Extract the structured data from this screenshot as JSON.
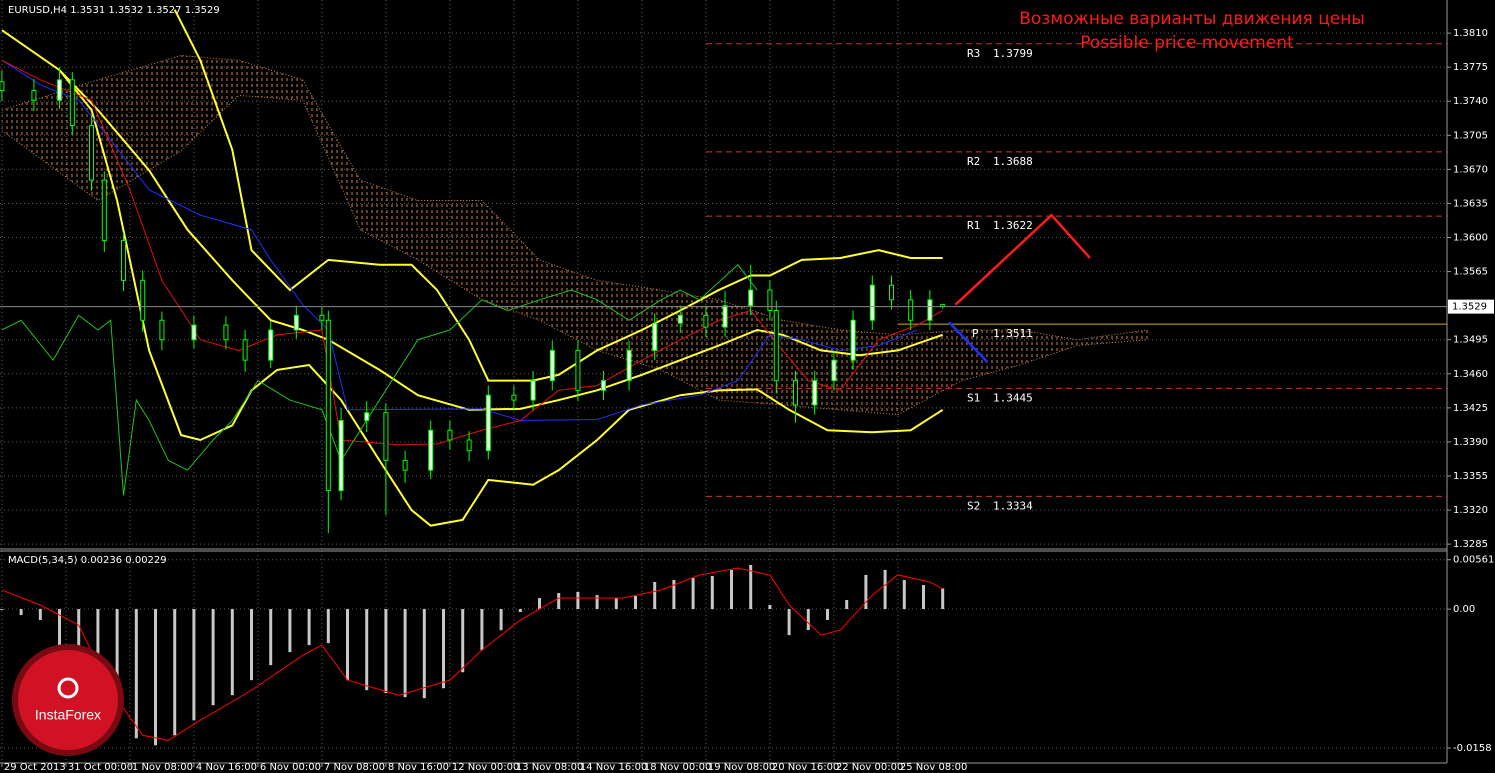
{
  "chart_data": [
    {
      "type": "candlestick",
      "header": "EURUSD,H4  1.3531 1.3532 1.3527 1.3529",
      "title": "Возможные варианты движения цены",
      "subtitle": "Possible price movement",
      "title_color": "#ff1a1a",
      "logo": "InstaForex",
      "xlim": [
        -0.3,
        225.8
      ],
      "xticks": [
        {
          "value": 0,
          "label": "29 Oct 2013"
        },
        {
          "value": 10,
          "label": "31 Oct 00:00"
        },
        {
          "value": 20,
          "label": "1 Nov 08:00"
        },
        {
          "value": 30,
          "label": "4 Nov 16:00"
        },
        {
          "value": 40,
          "label": "6 Nov 00:00"
        },
        {
          "value": 50,
          "label": "7 Nov 08:00"
        },
        {
          "value": 60,
          "label": "8 Nov 16:00"
        },
        {
          "value": 70,
          "label": "12 Nov 00:00"
        },
        {
          "value": 80,
          "label": "13 Nov 08:00"
        },
        {
          "value": 90,
          "label": "14 Nov 16:00"
        },
        {
          "value": 100,
          "label": "18 Nov 00:00"
        },
        {
          "value": 110,
          "label": "19 Nov 08:00"
        },
        {
          "value": 120,
          "label": "20 Nov 16:00"
        },
        {
          "value": 130,
          "label": "22 Nov 00:00"
        },
        {
          "value": 140,
          "label": "25 Nov 08:00"
        }
      ],
      "ylim": [
        1.328,
        1.3844
      ],
      "yticks": [
        {
          "value": 1.381,
          "label": "1.3810"
        },
        1.3775,
        {
          "value": 1.374,
          "label": "1.3740"
        },
        1.3705,
        {
          "value": 1.367,
          "label": "1.3670"
        },
        1.3635,
        {
          "value": 1.36,
          "label": "1.3600"
        },
        1.3565,
        1.3495,
        {
          "value": 1.346,
          "label": "1.3460"
        },
        1.3425,
        {
          "value": 1.339,
          "label": "1.3390"
        },
        1.3355,
        {
          "value": 1.332,
          "label": "1.3320"
        },
        1.3285
      ],
      "grid": true,
      "candle_color": "#00ff00",
      "bull_body": "#f0fff0",
      "bear_body": "#000000",
      "x": [
        0,
        5,
        9,
        11,
        14,
        16,
        19,
        22,
        25,
        30,
        35,
        38,
        42,
        46,
        50,
        51,
        53,
        57,
        60,
        63,
        67,
        70,
        73,
        76,
        80,
        83,
        86,
        90,
        94,
        98,
        102,
        106,
        110,
        113,
        117,
        120,
        121,
        124,
        127,
        130,
        133,
        136,
        139,
        142,
        145,
        147
      ],
      "open": [
        1.376,
        1.3751,
        1.3741,
        1.3762,
        1.3715,
        1.3659,
        1.3597,
        1.3556,
        1.3515,
        1.3495,
        1.351,
        1.3495,
        1.3474,
        1.3505,
        1.352,
        1.3515,
        1.334,
        1.3412,
        1.342,
        1.3371,
        1.3361,
        1.3402,
        1.3392,
        1.3381,
        1.3438,
        1.3433,
        1.3453,
        1.3484,
        1.3443,
        1.3453,
        1.3484,
        1.3512,
        1.352,
        1.3508,
        1.353,
        1.3546,
        1.3525,
        1.3453,
        1.3428,
        1.3453,
        1.3474,
        1.3515,
        1.3551,
        1.3536,
        1.3515,
        1.3531
      ],
      "high": [
        1.3772,
        1.3763,
        1.3775,
        1.377,
        1.3725,
        1.3668,
        1.3605,
        1.3566,
        1.3524,
        1.352,
        1.3519,
        1.3505,
        1.3514,
        1.353,
        1.3529,
        1.3525,
        1.3425,
        1.3432,
        1.343,
        1.3381,
        1.3412,
        1.3412,
        1.3401,
        1.3448,
        1.3448,
        1.3463,
        1.3494,
        1.3494,
        1.3463,
        1.3494,
        1.3522,
        1.353,
        1.353,
        1.3545,
        1.3572,
        1.3556,
        1.3535,
        1.3463,
        1.3463,
        1.3484,
        1.3525,
        1.3561,
        1.3561,
        1.3546,
        1.3546,
        1.3532
      ],
      "low": [
        1.374,
        1.373,
        1.3732,
        1.3705,
        1.3648,
        1.3585,
        1.3545,
        1.3503,
        1.3484,
        1.3486,
        1.3485,
        1.3462,
        1.3466,
        1.3496,
        1.3505,
        1.3296,
        1.333,
        1.34,
        1.3315,
        1.3348,
        1.3352,
        1.3382,
        1.337,
        1.3372,
        1.3422,
        1.3423,
        1.3443,
        1.3432,
        1.3433,
        1.3443,
        1.3474,
        1.3502,
        1.3498,
        1.3498,
        1.352,
        1.3515,
        1.344,
        1.341,
        1.3418,
        1.3443,
        1.3464,
        1.3505,
        1.3526,
        1.3505,
        1.3505,
        1.3527
      ],
      "close": [
        1.3751,
        1.3741,
        1.3762,
        1.3715,
        1.3659,
        1.3597,
        1.3556,
        1.3515,
        1.3495,
        1.351,
        1.3495,
        1.3474,
        1.3505,
        1.352,
        1.3515,
        1.334,
        1.3412,
        1.342,
        1.3371,
        1.3361,
        1.3402,
        1.3392,
        1.3381,
        1.3438,
        1.3433,
        1.3453,
        1.3484,
        1.3443,
        1.3453,
        1.3484,
        1.3512,
        1.352,
        1.3508,
        1.353,
        1.3546,
        1.3525,
        1.3453,
        1.3428,
        1.3453,
        1.3474,
        1.3515,
        1.3551,
        1.3536,
        1.3515,
        1.3536,
        1.3529
      ],
      "cloud": {
        "color": "#c8824a",
        "x": [
          0,
          15,
          28,
          37,
          47,
          56,
          65,
          75,
          84,
          93,
          103,
          112,
          122,
          131,
          140,
          150,
          159,
          168,
          179
        ],
        "span_a": [
          1.3731,
          1.3762,
          1.3787,
          1.3782,
          1.3762,
          1.3659,
          1.3638,
          1.3638,
          1.3577,
          1.3556,
          1.3546,
          1.3536,
          1.3515,
          1.3505,
          1.35,
          1.3505,
          1.3505,
          1.3495,
          1.3505
        ],
        "span_b": [
          1.371,
          1.3638,
          1.3689,
          1.3746,
          1.3741,
          1.3608,
          1.3577,
          1.3536,
          1.3515,
          1.3484,
          1.3464,
          1.3433,
          1.3428,
          1.3423,
          1.3418,
          1.3453,
          1.3469,
          1.3489,
          1.3495
        ]
      },
      "series": [
        {
          "color": "#ffff33",
          "x": [
            27,
            31,
            36,
            39,
            45,
            51,
            59,
            64,
            68,
            73,
            76,
            83,
            87,
            93,
            100,
            106,
            112,
            117,
            120,
            125,
            131,
            137,
            142,
            147
          ],
          "values": [
            1.3834,
            1.3782,
            1.369,
            1.3587,
            1.3546,
            1.3577,
            1.3572,
            1.3572,
            1.3546,
            1.3495,
            1.3453,
            1.3453,
            1.3459,
            1.3484,
            1.3505,
            1.3525,
            1.3546,
            1.3561,
            1.3561,
            1.3577,
            1.3579,
            1.3587,
            1.3579,
            1.3579
          ]
        },
        {
          "color": "#ffff33",
          "x": [
            0,
            9,
            15,
            23,
            29,
            36,
            42,
            47,
            51,
            59,
            65,
            73,
            81,
            87,
            93,
            100,
            106,
            112,
            118,
            122,
            128,
            134,
            140,
            147
          ],
          "values": [
            1.3813,
            1.3772,
            1.3731,
            1.3669,
            1.3608,
            1.3556,
            1.3515,
            1.3505,
            1.3495,
            1.3464,
            1.3438,
            1.3423,
            1.3424,
            1.3433,
            1.3443,
            1.3459,
            1.3474,
            1.3489,
            1.3505,
            1.35,
            1.3484,
            1.3479,
            1.3484,
            1.35
          ]
        },
        {
          "color": "#ffff33",
          "x": [
            9,
            14,
            18,
            23,
            28,
            31,
            36,
            39,
            43,
            48,
            53,
            59,
            64,
            67,
            72,
            76,
            83,
            87,
            93,
            98,
            106,
            112,
            118,
            123,
            129,
            136,
            142,
            147
          ],
          "values": [
            1.3772,
            1.3731,
            1.3638,
            1.3484,
            1.3397,
            1.3392,
            1.3407,
            1.3443,
            1.3464,
            1.3469,
            1.3433,
            1.3371,
            1.332,
            1.3304,
            1.331,
            1.3351,
            1.3346,
            1.3361,
            1.3392,
            1.3423,
            1.3438,
            1.3443,
            1.3444,
            1.3423,
            1.3402,
            1.34,
            1.3402,
            1.3423
          ]
        },
        {
          "color": "#1f2fff",
          "x": [
            0,
            6,
            12,
            17,
            23,
            31,
            39,
            42,
            47,
            51,
            54,
            75,
            81,
            93,
            100,
            109,
            115,
            120,
            125,
            131,
            137,
            143
          ],
          "values": [
            1.3782,
            1.3757,
            1.3741,
            1.37,
            1.3649,
            1.3623,
            1.3608,
            1.3577,
            1.3531,
            1.3505,
            1.3423,
            1.3424,
            1.3412,
            1.3413,
            1.3428,
            1.3438,
            1.3453,
            1.35,
            1.3495,
            1.3484,
            1.3489,
            1.3505
          ]
        },
        {
          "color": "#e01010",
          "x": [
            0,
            6,
            14,
            20,
            25,
            31,
            37,
            43,
            50,
            53,
            62,
            68,
            75,
            81,
            87,
            93,
            100,
            106,
            112,
            117,
            122,
            126,
            131,
            137,
            143,
            147
          ],
          "values": [
            1.3782,
            1.3762,
            1.3741,
            1.3649,
            1.3556,
            1.3495,
            1.3484,
            1.35,
            1.3505,
            1.3392,
            1.3387,
            1.3388,
            1.3402,
            1.3412,
            1.3443,
            1.3448,
            1.3474,
            1.3495,
            1.3515,
            1.3525,
            1.3484,
            1.3453,
            1.3443,
            1.3495,
            1.351,
            1.3525
          ]
        },
        {
          "color": "#22c322",
          "x": [
            0,
            3,
            8,
            12,
            15,
            17,
            19,
            21,
            23,
            26,
            29,
            33,
            36,
            40,
            45,
            50,
            53,
            59,
            65,
            70,
            75,
            79,
            84,
            89,
            93,
            98,
            103,
            106,
            109,
            115,
            118
          ],
          "values": [
            1.3505,
            1.3515,
            1.3474,
            1.352,
            1.3505,
            1.3515,
            1.3335,
            1.3433,
            1.3412,
            1.3371,
            1.3361,
            1.3392,
            1.3412,
            1.3453,
            1.3433,
            1.3423,
            1.3371,
            1.3433,
            1.3495,
            1.3505,
            1.3536,
            1.3525,
            1.3536,
            1.3546,
            1.3536,
            1.3515,
            1.3536,
            1.3546,
            1.3536,
            1.3572,
            1.3546
          ]
        }
      ],
      "forecast": [
        {
          "color": "#ff1a1a",
          "x": [
            149,
            164,
            170
          ],
          "values": [
            1.3531,
            1.3623,
            1.3579
          ]
        },
        {
          "color": "#1f2fff",
          "x": [
            148,
            154
          ],
          "values": [
            1.3513,
            1.3472
          ]
        }
      ],
      "levels": [
        {
          "label": "R3",
          "value": 1.3799
        },
        {
          "label": "R2",
          "value": 1.3688
        },
        {
          "label": "R1",
          "value": 1.3622
        },
        {
          "label": "P",
          "value": 1.3511
        },
        {
          "label": "S1",
          "value": 1.3445
        },
        {
          "label": "S2",
          "value": 1.3334
        }
      ],
      "level_color": "#c0392b",
      "pivot_color": "#d4b000",
      "current_price": 1.3529
    },
    {
      "type": "bar",
      "header": "MACD(5,34,5) 0.00236 0.00229",
      "color": "#c8c8c8",
      "ylim": [
        -0.0175,
        0.0066
      ],
      "yticks": [
        0.00561,
        {
          "value": 0,
          "label": "0.00"
        },
        -0.0158
      ],
      "x": [
        0,
        3,
        6,
        9,
        12,
        15,
        18,
        21,
        24,
        27,
        30,
        33,
        36,
        39,
        42,
        45,
        48,
        51,
        54,
        57,
        60,
        63,
        66,
        69,
        72,
        75,
        78,
        81,
        84,
        87,
        90,
        93,
        96,
        99,
        102,
        105,
        108,
        111,
        114,
        117,
        120,
        123,
        126,
        129,
        132,
        135,
        138,
        141,
        144,
        147
      ],
      "values": [
        -0.00011,
        -0.00068,
        -0.00125,
        -0.00467,
        -0.00695,
        -0.01036,
        -0.01264,
        -0.01469,
        -0.01549,
        -0.01435,
        -0.01265,
        -0.01093,
        -0.00979,
        -0.00808,
        -0.00638,
        -0.0049,
        -0.0041,
        -0.00387,
        -0.00809,
        -0.00922,
        -0.00956,
        -0.01002,
        -0.01013,
        -0.009,
        -0.00718,
        -0.00468,
        -0.0024,
        -0.00034,
        0.00125,
        0.00182,
        0.00194,
        0.00159,
        0.00126,
        0.00148,
        0.00308,
        0.0033,
        0.00353,
        0.00376,
        0.00444,
        0.00501,
        0.00046,
        -0.00296,
        -0.00239,
        -0.00124,
        0.00103,
        0.00388,
        0.00445,
        0.0033,
        0.00273,
        0.00236
      ],
      "signal": {
        "color": "#ff0000",
        "x": [
          0,
          6,
          12,
          17,
          22,
          26,
          31,
          39,
          47,
          50,
          54,
          62,
          70,
          75,
          81,
          87,
          97,
          103,
          109,
          115,
          120,
          123,
          128,
          131,
          136,
          140,
          145,
          147
        ],
        "values": [
          0.00216,
          0.00046,
          -0.00182,
          -0.00921,
          -0.01435,
          -0.01492,
          -0.01263,
          -0.00923,
          -0.00524,
          -0.0041,
          -0.00807,
          -0.00979,
          -0.00808,
          -0.00467,
          -0.00125,
          0.00125,
          0.00126,
          0.00217,
          0.00387,
          0.00467,
          0.00386,
          0.00047,
          -0.00296,
          -0.00239,
          0.00159,
          0.00389,
          0.00308,
          0.00229
        ]
      }
    }
  ]
}
